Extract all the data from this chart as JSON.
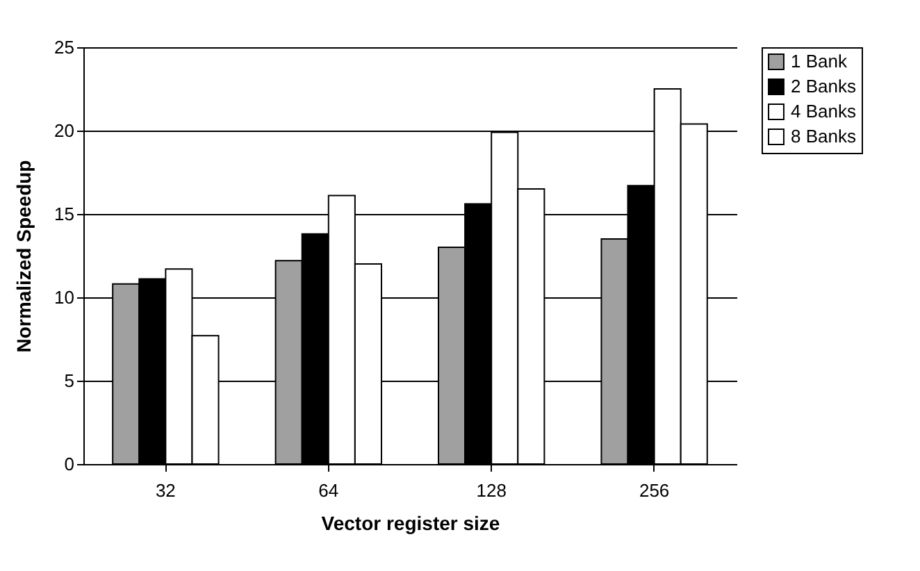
{
  "chart_data": {
    "type": "bar",
    "xlabel": "Vector register size",
    "ylabel": "Normalized Speedup",
    "categories": [
      "32",
      "64",
      "128",
      "256"
    ],
    "series": [
      {
        "name": "1 Bank",
        "color": "#a0a0a0",
        "values": [
          10.8,
          12.2,
          13.0,
          13.5
        ]
      },
      {
        "name": "2 Banks",
        "color": "#000000",
        "values": [
          11.1,
          13.8,
          15.6,
          16.7
        ]
      },
      {
        "name": "4 Banks",
        "color": "#ffffff",
        "values": [
          11.7,
          16.1,
          19.9,
          22.5
        ]
      },
      {
        "name": "8 Banks",
        "color": "#ffffff",
        "values": [
          7.7,
          12.0,
          16.5,
          20.4
        ]
      }
    ],
    "ylim": [
      0,
      25
    ],
    "yticks": [
      0,
      5,
      10,
      15,
      20,
      25
    ],
    "grid": "y",
    "legend": "right"
  }
}
